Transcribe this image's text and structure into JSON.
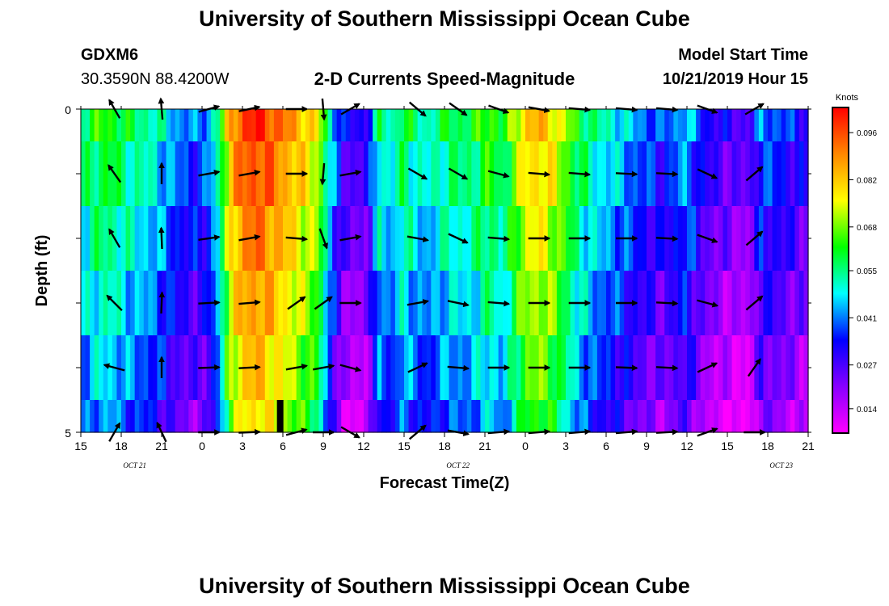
{
  "page": {
    "title_top": "University of Southern Mississippi Ocean Cube",
    "title_bottom": "University of Southern Mississippi Ocean Cube",
    "station": "GDXM6",
    "location": "30.3590N 88.4200W",
    "subtitle": "2-D Currents Speed-Magnitude",
    "model_start_label": "Model Start Time",
    "model_start_value": "10/21/2019 Hour 15"
  },
  "chart_data": {
    "type": "heatmap",
    "title": "2-D Currents Speed-Magnitude",
    "xlabel": "Forecast Time(Z)",
    "ylabel": "Depth (ft)",
    "ylim": [
      0,
      5
    ],
    "y_tick_labels": [
      "0",
      "5"
    ],
    "x_tick_labels": [
      "15",
      "18",
      "21",
      "0",
      "3",
      "6",
      "9",
      "12",
      "15",
      "18",
      "21",
      "0",
      "3",
      "6",
      "9",
      "12",
      "15",
      "18",
      "21"
    ],
    "date_labels": [
      {
        "text": "OCT 21",
        "hour_index": 4
      },
      {
        "text": "OCT 22",
        "hour_index": 28
      },
      {
        "text": "OCT 23",
        "hour_index": 52
      }
    ],
    "hours": 54,
    "depth_layers": 5,
    "colorbar": {
      "unit": "Knots",
      "labels": [
        "0.096",
        "0.082",
        "0.068",
        "0.055",
        "0.041",
        "0.027",
        "0.014"
      ],
      "min": 0.007,
      "max": 0.103,
      "colors": [
        "#ff00ff",
        "#8800ff",
        "#0000ff",
        "#00ffff",
        "#00ff00",
        "#ffff00",
        "#ff8800",
        "#ff0000"
      ]
    },
    "speed_profile_knots": [
      0.045,
      0.05,
      0.052,
      0.048,
      0.045,
      0.043,
      0.04,
      0.035,
      0.03,
      0.028,
      0.03,
      0.045,
      0.075,
      0.085,
      0.088,
      0.085,
      0.08,
      0.075,
      0.07,
      0.065,
      0.04,
      0.022,
      0.018,
      0.02,
      0.045,
      0.038,
      0.05,
      0.042,
      0.04,
      0.045,
      0.048,
      0.045,
      0.05,
      0.055,
      0.046,
      0.06,
      0.07,
      0.072,
      0.068,
      0.06,
      0.05,
      0.045,
      0.04,
      0.038,
      0.035,
      0.03,
      0.028,
      0.025,
      0.03,
      0.035,
      0.025,
      0.02,
      0.018,
      0.016,
      0.015,
      0.03,
      0.028,
      0.025,
      0.022,
      0.02
    ],
    "surface_offset_knots": [
      0.012,
      0.008,
      0.004,
      0,
      -0.004,
      -0.008
    ],
    "marker_hour": 14.8,
    "vectors": [
      {
        "hour": 17.5,
        "angles_deg": [
          120,
          125,
          120,
          135,
          165,
          60
        ]
      },
      {
        "hour": 21,
        "angles_deg": [
          95,
          90,
          92,
          88,
          90,
          115
        ]
      },
      {
        "hour": 0.5,
        "angles_deg": [
          15,
          10,
          8,
          3,
          2,
          0
        ]
      },
      {
        "hour": 3.5,
        "angles_deg": [
          12,
          10,
          10,
          5,
          3,
          2
        ]
      },
      {
        "hour": 7,
        "angles_deg": [
          0,
          0,
          -5,
          35,
          10,
          15
        ]
      },
      {
        "hour": 9,
        "angles_deg": [
          -85,
          -95,
          -70,
          35,
          10,
          0
        ]
      },
      {
        "hour": 11,
        "angles_deg": [
          30,
          10,
          10,
          0,
          -15,
          -30
        ]
      },
      {
        "hour": 16,
        "angles_deg": [
          -40,
          -30,
          -10,
          10,
          25,
          40
        ]
      },
      {
        "hour": 19,
        "angles_deg": [
          -35,
          -30,
          -25,
          -12,
          -5,
          -10
        ]
      },
      {
        "hour": 22,
        "angles_deg": [
          -20,
          -15,
          -5,
          -5,
          0,
          5
        ]
      },
      {
        "hour": 1,
        "angles_deg": [
          -10,
          -5,
          0,
          0,
          0,
          5
        ]
      },
      {
        "hour": 4,
        "angles_deg": [
          -5,
          -5,
          0,
          0,
          0,
          5
        ]
      },
      {
        "hour": 7.5,
        "angles_deg": [
          -5,
          -3,
          0,
          0,
          -2,
          5
        ]
      },
      {
        "hour": 10.5,
        "angles_deg": [
          -5,
          -3,
          -3,
          -3,
          -3,
          3
        ]
      },
      {
        "hour": 13.5,
        "angles_deg": [
          -20,
          -25,
          -20,
          -15,
          25,
          20
        ]
      },
      {
        "hour": 17,
        "angles_deg": [
          30,
          40,
          40,
          40,
          55,
          0
        ]
      }
    ]
  }
}
